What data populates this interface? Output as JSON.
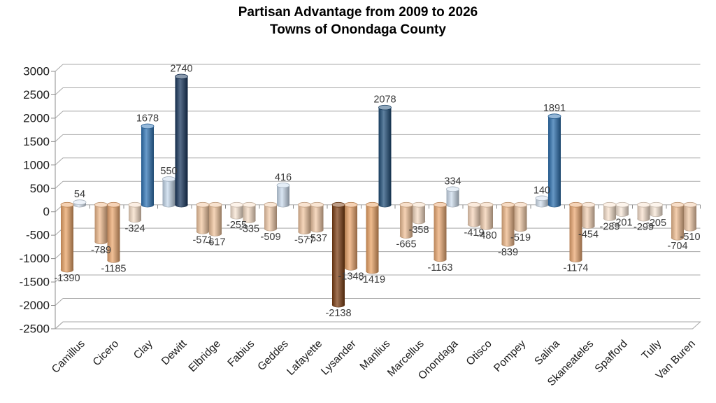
{
  "title": {
    "line1": "Partisan Advantage from 2009 to 2026",
    "line2": "Towns of Onondaga County"
  },
  "chart_data": {
    "type": "bar",
    "subtype": "3d-cylinder",
    "title": "Partisan Advantage from 2009 to 2026",
    "subtitle": "Towns of Onondaga County",
    "xlabel": "",
    "ylabel": "",
    "ylim": [
      -2500,
      3000
    ],
    "ytick_step": 500,
    "grid": "on",
    "legend": "none",
    "ytick_labels": [
      "3000",
      "2500",
      "2000",
      "1500",
      "1000",
      "500",
      "0",
      "-500",
      "-1000",
      "-1500",
      "-2000",
      "-2500"
    ],
    "categories": [
      "Camillus",
      "Cicero",
      "Clay",
      "Dewitt",
      "Elbridge",
      "Fabius",
      "Geddes",
      "Lafayette",
      "Lysander",
      "Manlius",
      "Marcellus",
      "Onondaga",
      "Otisco",
      "Pompey",
      "Salina",
      "Skaneateles",
      "Spafford",
      "Tully",
      "Van Buren"
    ],
    "series": [
      {
        "values": [
          -1390,
          -789,
          -324,
          550,
          -571,
          -255,
          -509,
          -577,
          -2138,
          -1419,
          -665,
          -1163,
          -419,
          -839,
          140,
          -1174,
          -289,
          -299,
          -704
        ],
        "colors": [
          "#EAA365",
          "#F0BA8C",
          "#F8DFC8",
          "#C6D9ED",
          "#F2C7A0",
          "#FAE6D4",
          "#F3CCAA",
          "#F2C6A0",
          "#7C3D11",
          "#EAA263",
          "#F1C197",
          "#ECA972",
          "#F6D6BB",
          "#EFB787",
          "#D4E1F0",
          "#ECA871",
          "#F9E3CF",
          "#F9E2CE",
          "#F0BD90"
        ]
      },
      {
        "values": [
          54,
          -1185,
          1678,
          2740,
          -617,
          -335,
          416,
          -537,
          -1348,
          2078,
          -358,
          334,
          -480,
          -519,
          1891,
          -454,
          -201,
          -205,
          -510
        ],
        "colors": [
          "#DAE5F2",
          "#ECA76F",
          "#2E74B6",
          "#17365D",
          "#F1C49C",
          "#F8DEC6",
          "#CBDCEE",
          "#F3CAA7",
          "#EBA56B",
          "#1F4E79",
          "#F7DCC3",
          "#CFDEEF",
          "#F4D0B1",
          "#F3CBA8",
          "#2B6FAF",
          "#F5D3B6",
          "#FBEADB",
          "#FBEADA",
          "#F3CBA9"
        ]
      }
    ],
    "style_colors": {
      "gridline": "#A8A8A8",
      "axis": "#8C8C8C",
      "value_label": "#3A3A3A",
      "tick_label": "#1A1A1A"
    }
  }
}
